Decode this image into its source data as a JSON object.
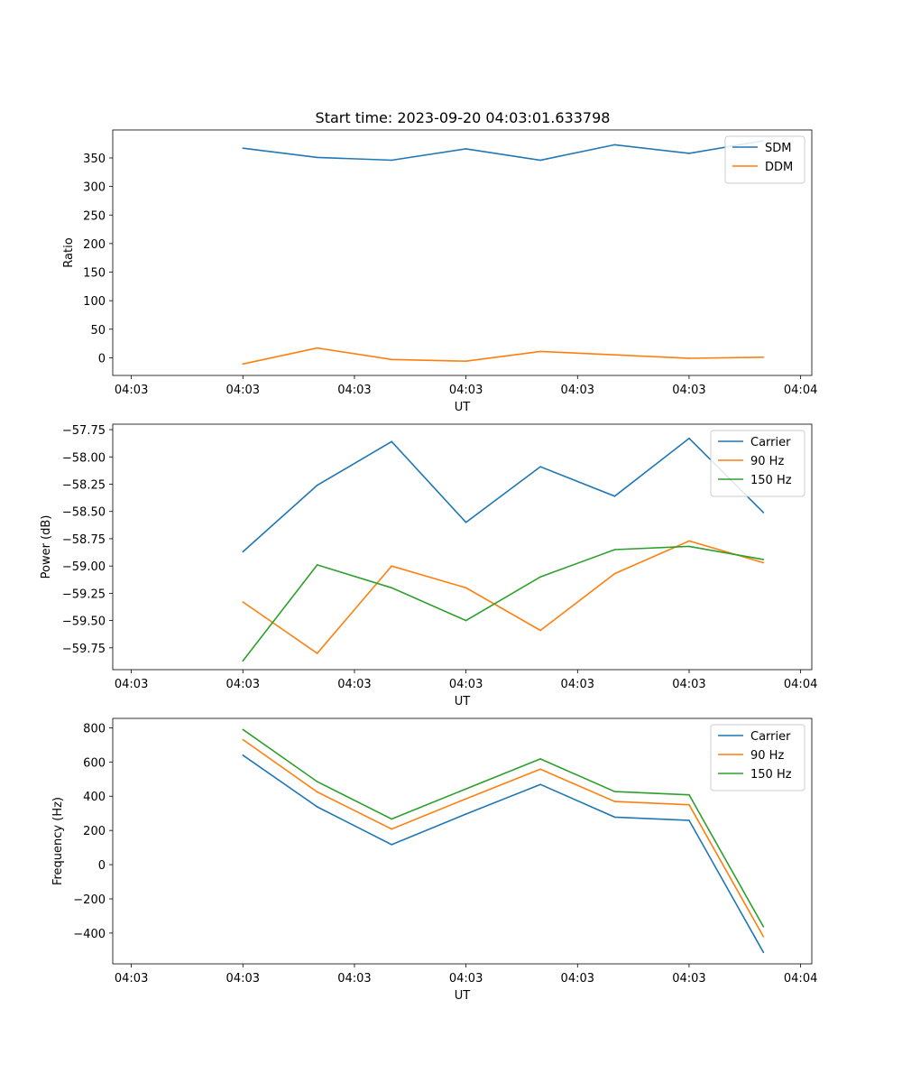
{
  "title": "Start time: 2023-09-20 04:03:01.633798",
  "chart_data": [
    {
      "type": "line",
      "title": "Start time: 2023-09-20 04:03:01.633798",
      "xlabel": "UT",
      "ylabel": "Ratio",
      "x": [
        1,
        2,
        3,
        4,
        5,
        6,
        7,
        8
      ],
      "xlim": [
        -0.75,
        8.65
      ],
      "xticks": [
        -0.5,
        1.0,
        2.5,
        4.0,
        5.5,
        7.0,
        8.5
      ],
      "xtick_labels": [
        "04:03",
        "04:03",
        "04:03",
        "04:03",
        "04:03",
        "04:03",
        "04:04"
      ],
      "ylim": [
        -31,
        399
      ],
      "yticks": [
        0,
        50,
        100,
        150,
        200,
        250,
        300,
        350
      ],
      "ytick_labels": [
        "0",
        "50",
        "100",
        "150",
        "200",
        "250",
        "300",
        "350"
      ],
      "legend_loc": "upper right",
      "series": [
        {
          "name": "SDM",
          "color": "#1f77b4",
          "values": [
            367,
            351,
            346,
            366,
            346,
            373,
            358,
            380
          ]
        },
        {
          "name": "DDM",
          "color": "#ff7f0e",
          "values": [
            -11,
            17,
            -3,
            -6,
            11,
            5,
            -1,
            1
          ]
        }
      ]
    },
    {
      "type": "line",
      "title": "",
      "xlabel": "UT",
      "ylabel": "Power (dB)",
      "x": [
        1,
        2,
        3,
        4,
        5,
        6,
        7,
        8
      ],
      "xlim": [
        -0.75,
        8.65
      ],
      "xticks": [
        -0.5,
        1.0,
        2.5,
        4.0,
        5.5,
        7.0,
        8.5
      ],
      "xtick_labels": [
        "04:03",
        "04:03",
        "04:03",
        "04:03",
        "04:03",
        "04:03",
        "04:04"
      ],
      "ylim": [
        -59.95,
        -57.7
      ],
      "yticks": [
        -59.75,
        -59.5,
        -59.25,
        -59.0,
        -58.75,
        -58.5,
        -58.25,
        -58.0,
        -57.75
      ],
      "ytick_labels": [
        "−59.75",
        "−59.50",
        "−59.25",
        "−59.00",
        "−58.75",
        "−58.50",
        "−58.25",
        "−58.00",
        "−57.75"
      ],
      "legend_loc": "upper right",
      "series": [
        {
          "name": "Carrier",
          "color": "#1f77b4",
          "values": [
            -58.87,
            -58.26,
            -57.86,
            -58.6,
            -58.09,
            -58.36,
            -57.83,
            -58.51
          ]
        },
        {
          "name": "90 Hz",
          "color": "#ff7f0e",
          "values": [
            -59.33,
            -59.8,
            -59.0,
            -59.2,
            -59.59,
            -59.07,
            -58.77,
            -58.97
          ]
        },
        {
          "name": "150 Hz",
          "color": "#2ca02c",
          "values": [
            -59.87,
            -58.99,
            -59.2,
            -59.5,
            -59.1,
            -58.85,
            -58.82,
            -58.94
          ]
        }
      ]
    },
    {
      "type": "line",
      "title": "",
      "xlabel": "UT",
      "ylabel": "Frequency (Hz)",
      "x": [
        1,
        2,
        3,
        4,
        5,
        6,
        7,
        8
      ],
      "xlim": [
        -0.75,
        8.65
      ],
      "xticks": [
        -0.5,
        1.0,
        2.5,
        4.0,
        5.5,
        7.0,
        8.5
      ],
      "xtick_labels": [
        "04:03",
        "04:03",
        "04:03",
        "04:03",
        "04:03",
        "04:03",
        "04:04"
      ],
      "ylim": [
        -580,
        855
      ],
      "yticks": [
        -400,
        -200,
        0,
        200,
        400,
        600,
        800
      ],
      "ytick_labels": [
        "−400",
        "−200",
        "0",
        "200",
        "400",
        "600",
        "800"
      ],
      "legend_loc": "upper right",
      "series": [
        {
          "name": "Carrier",
          "color": "#1f77b4",
          "values": [
            640,
            338,
            117,
            296,
            469,
            278,
            259,
            -513
          ]
        },
        {
          "name": "90 Hz",
          "color": "#ff7f0e",
          "values": [
            731,
            425,
            208,
            385,
            558,
            369,
            350,
            -421
          ]
        },
        {
          "name": "150 Hz",
          "color": "#2ca02c",
          "values": [
            790,
            485,
            267,
            443,
            618,
            427,
            408,
            -363
          ]
        }
      ]
    }
  ]
}
